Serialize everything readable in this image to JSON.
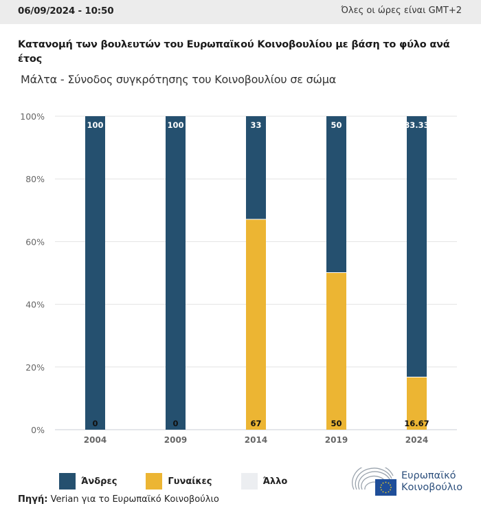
{
  "header": {
    "datetime": "06/09/2024 - 10:50",
    "timezone_note": "Όλες οι ώρες είναι GMT+2"
  },
  "title": "Κατανομή των βουλευτών του Ευρωπαϊκού Κοινοβουλίου με βάση το φύλο ανά έτος",
  "subtitle": "Μάλτα - Σύνοδος συγκρότησης του Κοινοβουλίου σε σώμα",
  "colors": {
    "men": "#25506f",
    "women": "#ecb533",
    "other": "#eceef1",
    "grid": "#e3e3e3",
    "axis": "#c9ccd4"
  },
  "chart_data": {
    "type": "bar",
    "stacked": true,
    "title": "Κατανομή των βουλευτών του Ευρωπαϊκού Κοινοβουλίου με βάση το φύλο ανά έτος",
    "subtitle": "Μάλτα - Σύνοδος συγκρότησης του Κοινοβουλίου σε σώμα",
    "categories": [
      "2004",
      "2009",
      "2014",
      "2019",
      "2024"
    ],
    "series": [
      {
        "name": "Άνδρες",
        "values": [
          100,
          100,
          33,
          50,
          83.33
        ],
        "labels": [
          "100",
          "100",
          "33",
          "50",
          "83.33"
        ]
      },
      {
        "name": "Γυναίκες",
        "values": [
          0,
          0,
          67,
          50,
          16.67
        ],
        "labels": [
          "0",
          "0",
          "67",
          "50",
          "16.67"
        ]
      },
      {
        "name": "Άλλο",
        "values": [
          0,
          0,
          0,
          0,
          0
        ]
      }
    ],
    "xlabel": "",
    "ylabel": "",
    "ylim": [
      0,
      100
    ],
    "yticks": [
      "0%",
      "20%",
      "40%",
      "60%",
      "80%",
      "100%"
    ],
    "grid": true,
    "legend": "bottom-left"
  },
  "legend": [
    {
      "label": "Άνδρες",
      "color": "#25506f"
    },
    {
      "label": "Γυναίκες",
      "color": "#ecb533"
    },
    {
      "label": "Άλλο",
      "color": "#eceef1"
    }
  ],
  "source": {
    "label": "Πηγή:",
    "text": " Verian για το Ευρωπαϊκό Κοινοβούλιο"
  },
  "logo": {
    "line1": "Ευρωπαϊκό",
    "line2": "Κοινοβούλιο"
  }
}
